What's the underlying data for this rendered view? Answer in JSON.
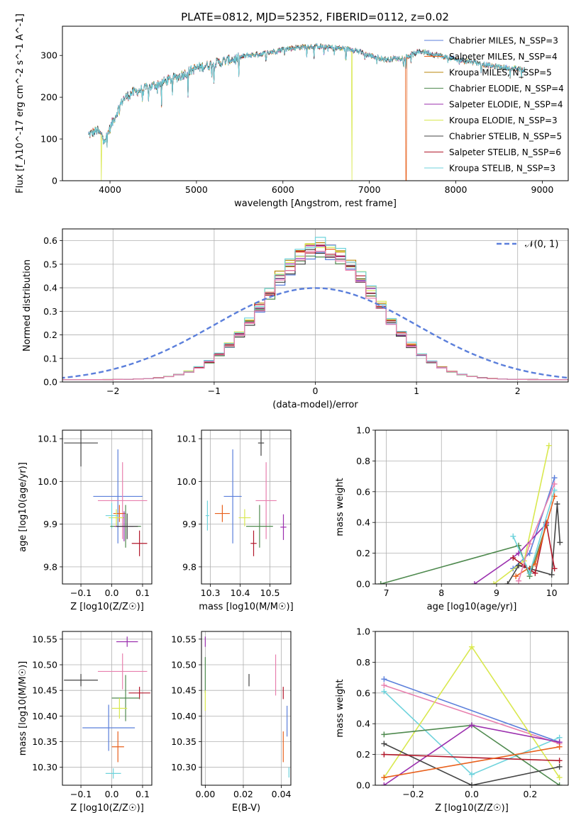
{
  "figure": {
    "title": "PLATE=0812, MJD=52352, FIBERID=0112, z=0.02"
  },
  "colors": {
    "Chabrier MILES": "#5b7fdb",
    "Salpeter MILES": "#e8601c",
    "Kroupa MILES": "#b8860b",
    "Chabrier ELODIE": "#4f8a4f",
    "Salpeter ELODIE": "#9b2fae",
    "Kroupa ELODIE": "#d9e84f",
    "Chabrier STELIB": "#444444",
    "Salpeter STELIB": "#b2182b",
    "Kroupa STELIB": "#6fd3dc",
    "Chabrier MILES (pink)": "#e87fae"
  },
  "chart_data": [
    {
      "id": "spectrum",
      "type": "line",
      "title": "PLATE=0812, MJD=52352, FIBERID=0112, z=0.02",
      "xlabel": "wavelength [Angstrom, rest frame]",
      "ylabel": "Flux [f_λ10^-17 erg cm^-2 s^-1 A^-1]",
      "xlim": [
        3450,
        9300
      ],
      "ylim": [
        0,
        370
      ],
      "xticks": [
        4000,
        5000,
        6000,
        7000,
        8000,
        9000
      ],
      "yticks": [
        0,
        100,
        200,
        300
      ],
      "legend": [
        "Chabrier MILES, N_SSP=3",
        "Salpeter MILES, N_SSP=4",
        "Kroupa MILES, N_SSP=5",
        "Chabrier ELODIE, N_SSP=4",
        "Salpeter ELODIE, N_SSP=4",
        "Kroupa ELODIE, N_SSP=3",
        "Chabrier STELIB, N_SSP=5",
        "Salpeter STELIB, N_SSP=6",
        "Kroupa STELIB, N_SSP=3"
      ],
      "legend_location": "upper right",
      "continuum": {
        "x": [
          3750,
          3850,
          3950,
          4050,
          4150,
          4250,
          4400,
          4600,
          4800,
          5000,
          5200,
          5400,
          5600,
          5800,
          6000,
          6200,
          6400,
          6600,
          6800,
          7000,
          7200,
          7400,
          7600,
          7800,
          8000,
          8200,
          8400,
          8600,
          8800
        ],
        "y": [
          110,
          120,
          100,
          150,
          195,
          210,
          220,
          235,
          250,
          270,
          280,
          290,
          300,
          305,
          315,
          320,
          322,
          318,
          315,
          300,
          290,
          295,
          310,
          300,
          290,
          285,
          275,
          270,
          265
        ]
      },
      "cutoffs": [
        {
          "model": "Kroupa ELODIE",
          "wavelength": 3900
        },
        {
          "model": "Kroupa ELODIE",
          "wavelength": 6800
        },
        {
          "model": "Salpeter MILES",
          "wavelength": 7420
        }
      ]
    },
    {
      "id": "residuals",
      "type": "histogram",
      "xlabel": "(data-model)/error",
      "ylabel": "Normed distribution",
      "xlim": [
        -2.5,
        2.5
      ],
      "ylim": [
        0,
        0.65
      ],
      "xticks": [
        -2,
        -1,
        0,
        1,
        2
      ],
      "yticks": [
        0.0,
        0.1,
        0.2,
        0.3,
        0.4,
        0.5,
        0.6
      ],
      "grid": true,
      "legend": [
        "𝒩(0, 1)"
      ],
      "legend_location": "upper right",
      "reference_curve": "normal pdf mean 0 sigma 1",
      "bin_width": 0.1,
      "peak_range": [
        0.55,
        0.62
      ],
      "series_colors": [
        "#5b7fdb",
        "#e8601c",
        "#b8860b",
        "#4f8a4f",
        "#9b2fae",
        "#d9e84f",
        "#444444",
        "#b2182b",
        "#6fd3dc",
        "#e87fae"
      ]
    },
    {
      "id": "age_vs_z",
      "type": "errorbar",
      "xlabel": "Z [log10(Z/Z☉)]",
      "ylabel": "age  [log10(age/yr)]",
      "xlim": [
        -0.16,
        0.13
      ],
      "ylim": [
        9.76,
        10.12
      ],
      "xticks": [
        -0.1,
        0.0,
        0.1
      ],
      "xticklabels": [
        "−0.1",
        "0.0",
        "0.1"
      ],
      "yticks": [
        9.8,
        9.9,
        10.0,
        10.1
      ],
      "yticklabels": [
        "9.8",
        "9.9",
        "10.0",
        "10.1"
      ],
      "grid": true,
      "points": [
        {
          "model": "Chabrier STELIB",
          "x": -0.1,
          "xerr": 0.055,
          "y": 10.09,
          "yerr": 0.055
        },
        {
          "model": "Chabrier MILES",
          "x": 0.02,
          "xerr": 0.08,
          "y": 9.965,
          "yerr": 0.11
        },
        {
          "model": "Chabrier MILES (pink)",
          "x": 0.035,
          "xerr": 0.08,
          "y": 9.955,
          "yerr": 0.09
        },
        {
          "model": "Salpeter MILES",
          "x": 0.025,
          "xerr": 0.02,
          "y": 9.925,
          "yerr": 0.02
        },
        {
          "model": "Kroupa ELODIE",
          "x": 0.015,
          "xerr": 0.025,
          "y": 9.915,
          "yerr": 0.02
        },
        {
          "model": "Kroupa STELIB",
          "x": 0.0,
          "xerr": 0.02,
          "y": 9.92,
          "yerr": 0.03
        },
        {
          "model": "Chabrier ELODIE",
          "x": 0.045,
          "xerr": 0.05,
          "y": 9.895,
          "yerr": 0.05
        },
        {
          "model": "Salpeter ELODIE",
          "x": 0.04,
          "xerr": 0.03,
          "y": 9.895,
          "yerr": 0.035
        },
        {
          "model": "Chabrier STELIB",
          "x": 0.05,
          "xerr": 0.035,
          "y": 9.895,
          "yerr": 0.03
        },
        {
          "model": "Salpeter STELIB",
          "x": 0.09,
          "xerr": 0.025,
          "y": 9.855,
          "yerr": 0.03
        }
      ]
    },
    {
      "id": "age_vs_mass",
      "type": "errorbar",
      "xlabel": "mass [log10(M/M☉)]",
      "ylabel": "",
      "xlim": [
        10.27,
        10.57
      ],
      "ylim": [
        9.76,
        10.12
      ],
      "xticks": [
        10.3,
        10.4,
        10.5
      ],
      "xticklabels": [
        "10.3",
        "10.4",
        "10.5"
      ],
      "yticks": [
        9.8,
        9.9,
        10.0,
        10.1
      ],
      "yticklabels": [
        "9.8",
        "9.9",
        "10.0",
        "10.1"
      ],
      "grid": true,
      "points": [
        {
          "model": "Chabrier STELIB",
          "x": 10.47,
          "xerr": 0.01,
          "y": 10.09,
          "yerr": 0.03
        },
        {
          "model": "Chabrier MILES",
          "x": 10.375,
          "xerr": 0.03,
          "y": 9.965,
          "yerr": 0.11
        },
        {
          "model": "Chabrier MILES (pink)",
          "x": 10.487,
          "xerr": 0.035,
          "y": 9.955,
          "yerr": 0.09
        },
        {
          "model": "Salpeter MILES",
          "x": 10.34,
          "xerr": 0.025,
          "y": 9.925,
          "yerr": 0.02
        },
        {
          "model": "Kroupa STELIB",
          "x": 10.29,
          "xerr": 0.006,
          "y": 9.92,
          "yerr": 0.035
        },
        {
          "model": "Kroupa ELODIE",
          "x": 10.415,
          "xerr": 0.02,
          "y": 9.915,
          "yerr": 0.02
        },
        {
          "model": "Chabrier ELODIE",
          "x": 10.465,
          "xerr": 0.045,
          "y": 9.895,
          "yerr": 0.05
        },
        {
          "model": "Salpeter ELODIE",
          "x": 10.545,
          "xerr": 0.01,
          "y": 9.893,
          "yerr": 0.03
        },
        {
          "model": "Salpeter STELIB",
          "x": 10.445,
          "xerr": 0.01,
          "y": 9.855,
          "yerr": 0.03
        }
      ]
    },
    {
      "id": "massweight_vs_age",
      "type": "line",
      "xlabel": "age  [log10(age/yr)]",
      "ylabel": "mass weight",
      "xlim": [
        6.8,
        10.3
      ],
      "ylim": [
        0.0,
        1.0
      ],
      "xticks": [
        7,
        8,
        9,
        10
      ],
      "yticks": [
        0.0,
        0.2,
        0.4,
        0.6,
        0.8,
        1.0
      ],
      "grid": true,
      "series": [
        {
          "model": "Chabrier MILES",
          "x": [
            9.3,
            9.6,
            10.05
          ],
          "y": [
            0.1,
            0.2,
            0.69
          ]
        },
        {
          "model": "Kroupa ELODIE",
          "x": [
            8.95,
            9.5,
            9.95
          ],
          "y": [
            0.0,
            0.15,
            0.9
          ]
        },
        {
          "model": "Chabrier ELODIE",
          "x": [
            6.9,
            9.4,
            9.6,
            9.9
          ],
          "y": [
            0.0,
            0.25,
            0.05,
            0.38
          ]
        },
        {
          "model": "Salpeter ELODIE",
          "x": [
            8.6,
            9.4,
            9.9
          ],
          "y": [
            0.0,
            0.2,
            0.39
          ]
        },
        {
          "model": "Chabrier STELIB",
          "x": [
            9.2,
            9.4,
            9.6,
            10.0,
            10.1,
            10.15
          ],
          "y": [
            0.0,
            0.12,
            0.1,
            0.06,
            0.52,
            0.27
          ]
        },
        {
          "model": "Salpeter STELIB",
          "x": [
            9.3,
            9.5,
            9.7,
            9.9,
            10.05
          ],
          "y": [
            0.17,
            0.12,
            0.07,
            0.4,
            0.1
          ]
        },
        {
          "model": "Salpeter MILES",
          "x": [
            9.35,
            9.7,
            10.05
          ],
          "y": [
            0.05,
            0.13,
            0.57
          ]
        },
        {
          "model": "Kroupa STELIB",
          "x": [
            9.3,
            9.6,
            10.05
          ],
          "y": [
            0.31,
            0.07,
            0.61
          ]
        },
        {
          "model": "Chabrier MILES (pink)",
          "x": [
            9.4,
            9.6,
            10.05
          ],
          "y": [
            0.02,
            0.26,
            0.65
          ]
        }
      ]
    },
    {
      "id": "mass_vs_z",
      "type": "errorbar",
      "xlabel": "Z [log10(Z/Z☉)]",
      "ylabel": "mass [log10(M/M☉)]",
      "xlim": [
        -0.16,
        0.13
      ],
      "ylim": [
        10.265,
        10.565
      ],
      "xticks": [
        -0.1,
        0.0,
        0.1
      ],
      "xticklabels": [
        "−0.1",
        "0.0",
        "0.1"
      ],
      "yticks": [
        10.3,
        10.35,
        10.4,
        10.45,
        10.5,
        10.55
      ],
      "yticklabels": [
        "10.30",
        "10.35",
        "10.40",
        "10.45",
        "10.50",
        "10.55"
      ],
      "grid": true,
      "points": [
        {
          "model": "Salpeter ELODIE",
          "x": 0.05,
          "xerr": 0.035,
          "y": 10.545,
          "yerr": 0.01
        },
        {
          "model": "Chabrier MILES (pink)",
          "x": 0.035,
          "xerr": 0.08,
          "y": 10.487,
          "yerr": 0.035
        },
        {
          "model": "Chabrier STELIB",
          "x": -0.1,
          "xerr": 0.055,
          "y": 10.47,
          "yerr": 0.012
        },
        {
          "model": "Salpeter STELIB",
          "x": 0.09,
          "xerr": 0.035,
          "y": 10.445,
          "yerr": 0.012
        },
        {
          "model": "Chabrier ELODIE",
          "x": 0.045,
          "xerr": 0.045,
          "y": 10.435,
          "yerr": 0.045
        },
        {
          "model": "Kroupa ELODIE",
          "x": 0.025,
          "xerr": 0.025,
          "y": 10.415,
          "yerr": 0.02
        },
        {
          "model": "Chabrier MILES",
          "x": -0.01,
          "xerr": 0.085,
          "y": 10.377,
          "yerr": 0.045
        },
        {
          "model": "Salpeter MILES",
          "x": 0.02,
          "xerr": 0.02,
          "y": 10.34,
          "yerr": 0.03
        },
        {
          "model": "Kroupa STELIB",
          "x": 0.005,
          "xerr": 0.025,
          "y": 10.288,
          "yerr": 0.01
        }
      ]
    },
    {
      "id": "mass_vs_ebv",
      "type": "errorbar",
      "xlabel": "E(B-V)",
      "ylabel": "",
      "xlim": [
        -0.002,
        0.045
      ],
      "ylim": [
        10.265,
        10.565
      ],
      "xticks": [
        0.0,
        0.02,
        0.04
      ],
      "xticklabels": [
        "0.00",
        "0.02",
        "0.04"
      ],
      "yticks": [
        10.3,
        10.35,
        10.4,
        10.45,
        10.5,
        10.55
      ],
      "yticklabels": [
        "10.30",
        "10.35",
        "10.40",
        "10.45",
        "10.50",
        "10.55"
      ],
      "grid": true,
      "points": [
        {
          "model": "Salpeter ELODIE",
          "x": 0.0,
          "xerr": 0.0,
          "y": 10.545,
          "yerr": 0.01
        },
        {
          "model": "Chabrier ELODIE",
          "x": 0.0,
          "xerr": 0.0,
          "y": 10.48,
          "yerr": 0.035
        },
        {
          "model": "Kroupa ELODIE",
          "x": 0.0,
          "xerr": 0.0,
          "y": 10.43,
          "yerr": 0.02
        },
        {
          "model": "Chabrier STELIB",
          "x": 0.023,
          "xerr": 0.0,
          "y": 10.47,
          "yerr": 0.012
        },
        {
          "model": "Chabrier MILES (pink)",
          "x": 0.037,
          "xerr": 0.0,
          "y": 10.48,
          "yerr": 0.04
        },
        {
          "model": "Salpeter STELIB",
          "x": 0.041,
          "xerr": 0.0,
          "y": 10.445,
          "yerr": 0.012
        },
        {
          "model": "Chabrier MILES",
          "x": 0.043,
          "xerr": 0.0,
          "y": 10.39,
          "yerr": 0.03
        },
        {
          "model": "Salpeter MILES",
          "x": 0.041,
          "xerr": 0.0,
          "y": 10.34,
          "yerr": 0.03
        },
        {
          "model": "Kroupa STELIB",
          "x": 0.044,
          "xerr": 0.0,
          "y": 10.29,
          "yerr": 0.01
        }
      ]
    },
    {
      "id": "massweight_vs_z",
      "type": "line",
      "xlabel": "Z [log10(Z/Z☉)]",
      "ylabel": "mass weight",
      "xlim": [
        -0.33,
        0.33
      ],
      "ylim": [
        0.0,
        1.0
      ],
      "xticks": [
        -0.2,
        0.0,
        0.2
      ],
      "xticklabels": [
        "−0.2",
        "0.0",
        "0.2"
      ],
      "yticks": [
        0.0,
        0.2,
        0.4,
        0.6,
        0.8,
        1.0
      ],
      "grid": true,
      "series": [
        {
          "model": "Chabrier MILES",
          "x": [
            -0.3,
            0.3
          ],
          "y": [
            0.69,
            0.28
          ]
        },
        {
          "model": "Chabrier MILES (pink)",
          "x": [
            -0.3,
            0.3
          ],
          "y": [
            0.65,
            0.27
          ]
        },
        {
          "model": "Kroupa STELIB",
          "x": [
            -0.3,
            0.0,
            0.3
          ],
          "y": [
            0.61,
            0.07,
            0.31
          ]
        },
        {
          "model": "Kroupa ELODIE",
          "x": [
            -0.3,
            0.0,
            0.3
          ],
          "y": [
            0.05,
            0.9,
            0.05
          ]
        },
        {
          "model": "Chabrier ELODIE",
          "x": [
            -0.3,
            0.0,
            0.3
          ],
          "y": [
            0.33,
            0.39,
            0.0
          ]
        },
        {
          "model": "Salpeter ELODIE",
          "x": [
            -0.3,
            0.0,
            0.3
          ],
          "y": [
            0.0,
            0.39,
            0.28
          ]
        },
        {
          "model": "Chabrier STELIB",
          "x": [
            -0.3,
            0.0,
            0.3
          ],
          "y": [
            0.27,
            0.0,
            0.12
          ]
        },
        {
          "model": "Salpeter STELIB",
          "x": [
            -0.3,
            0.3
          ],
          "y": [
            0.2,
            0.16
          ]
        },
        {
          "model": "Salpeter MILES",
          "x": [
            -0.3,
            0.3
          ],
          "y": [
            0.05,
            0.25
          ]
        }
      ]
    }
  ]
}
